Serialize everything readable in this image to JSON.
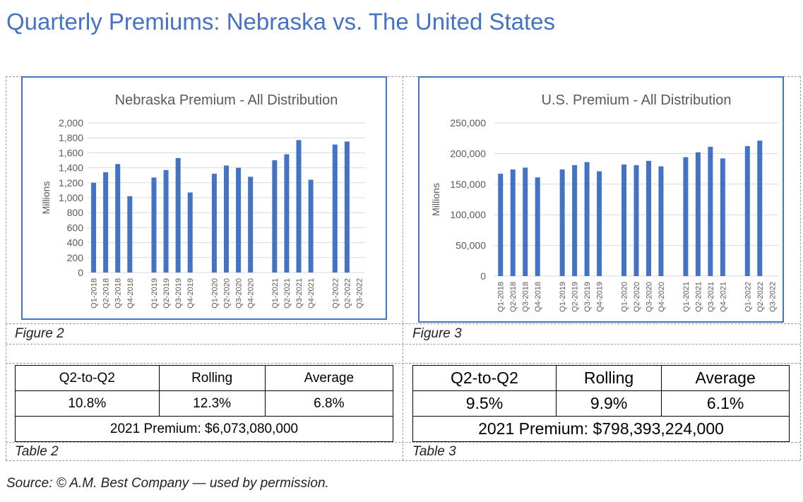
{
  "page_title": "Quarterly Premiums: Nebraska vs. The United States",
  "colors": {
    "bar": "#4472c4",
    "title": "#4472c4",
    "gridline": "#d9d9d9",
    "axis_text": "#595959"
  },
  "figure_captions": [
    "Figure 2",
    "Figure 3"
  ],
  "table_captions": [
    "Table 2",
    "Table 3"
  ],
  "source": "Source: © A.M. Best Company — used by permission.",
  "tables": [
    {
      "headers": [
        "Q2-to-Q2",
        "Rolling",
        "Average"
      ],
      "values": [
        "10.8%",
        "12.3%",
        "6.8%"
      ],
      "total": "2021 Premium: $6,073,080,000"
    },
    {
      "headers": [
        "Q2-to-Q2",
        "Rolling",
        "Average"
      ],
      "values": [
        "9.5%",
        "9.9%",
        "6.1%"
      ],
      "total": "2021 Premium: $798,393,224,000"
    }
  ],
  "chart_data": [
    {
      "type": "bar",
      "title": "Nebraska Premium - All Distribution",
      "ylabel": "Millions",
      "xlabel": "",
      "ylim": [
        0,
        2000
      ],
      "yticks": [
        0,
        200,
        400,
        600,
        800,
        1000,
        1200,
        1400,
        1600,
        1800,
        2000
      ],
      "ytick_labels": [
        "0",
        "200",
        "400",
        "600",
        "800",
        "1,000",
        "1,200",
        "1,400",
        "1,600",
        "1,800",
        "2,000"
      ],
      "grid": true,
      "legend": false,
      "categories": [
        "Q1-2018",
        "Q2-2018",
        "Q3-2018",
        "Q4-2018",
        "",
        "Q1-2019",
        "Q2-2019",
        "Q3-2019",
        "Q4-2019",
        "",
        "Q1-2020",
        "Q2-2020",
        "Q3-2020",
        "Q4-2020",
        "",
        "Q1-2021",
        "Q2-2021",
        "Q3-2021",
        "Q4-2021",
        "",
        "Q1-2022",
        "Q2-2022",
        "Q3-2022"
      ],
      "values": [
        1200,
        1340,
        1450,
        1020,
        null,
        1270,
        1370,
        1530,
        1070,
        null,
        1320,
        1430,
        1400,
        1280,
        null,
        1500,
        1580,
        1770,
        1240,
        null,
        1710,
        1750,
        null
      ]
    },
    {
      "type": "bar",
      "title": "U.S. Premium - All Distribution",
      "ylabel": "Millions",
      "xlabel": "",
      "ylim": [
        0,
        250000
      ],
      "yticks": [
        0,
        50000,
        100000,
        150000,
        200000,
        250000
      ],
      "ytick_labels": [
        "0",
        "50,000",
        "100,000",
        "150,000",
        "200,000",
        "250,000"
      ],
      "grid": true,
      "legend": false,
      "categories": [
        "Q1-2018",
        "Q2-2018",
        "Q3-2018",
        "Q4-2018",
        "",
        "Q1-2019",
        "Q2-2019",
        "Q3-2019",
        "Q4-2019",
        "",
        "Q1-2020",
        "Q2-2020",
        "Q3-2020",
        "Q4-2020",
        "",
        "Q1-2021",
        "Q2-2021",
        "Q3-2021",
        "Q4-2021",
        "",
        "Q1-2022",
        "Q2-2022",
        "Q3-2022"
      ],
      "values": [
        167000,
        174000,
        177000,
        161000,
        null,
        174000,
        181000,
        186000,
        171000,
        null,
        182000,
        181000,
        188000,
        179000,
        null,
        194000,
        202000,
        211000,
        192000,
        null,
        212000,
        221000,
        null
      ]
    }
  ]
}
